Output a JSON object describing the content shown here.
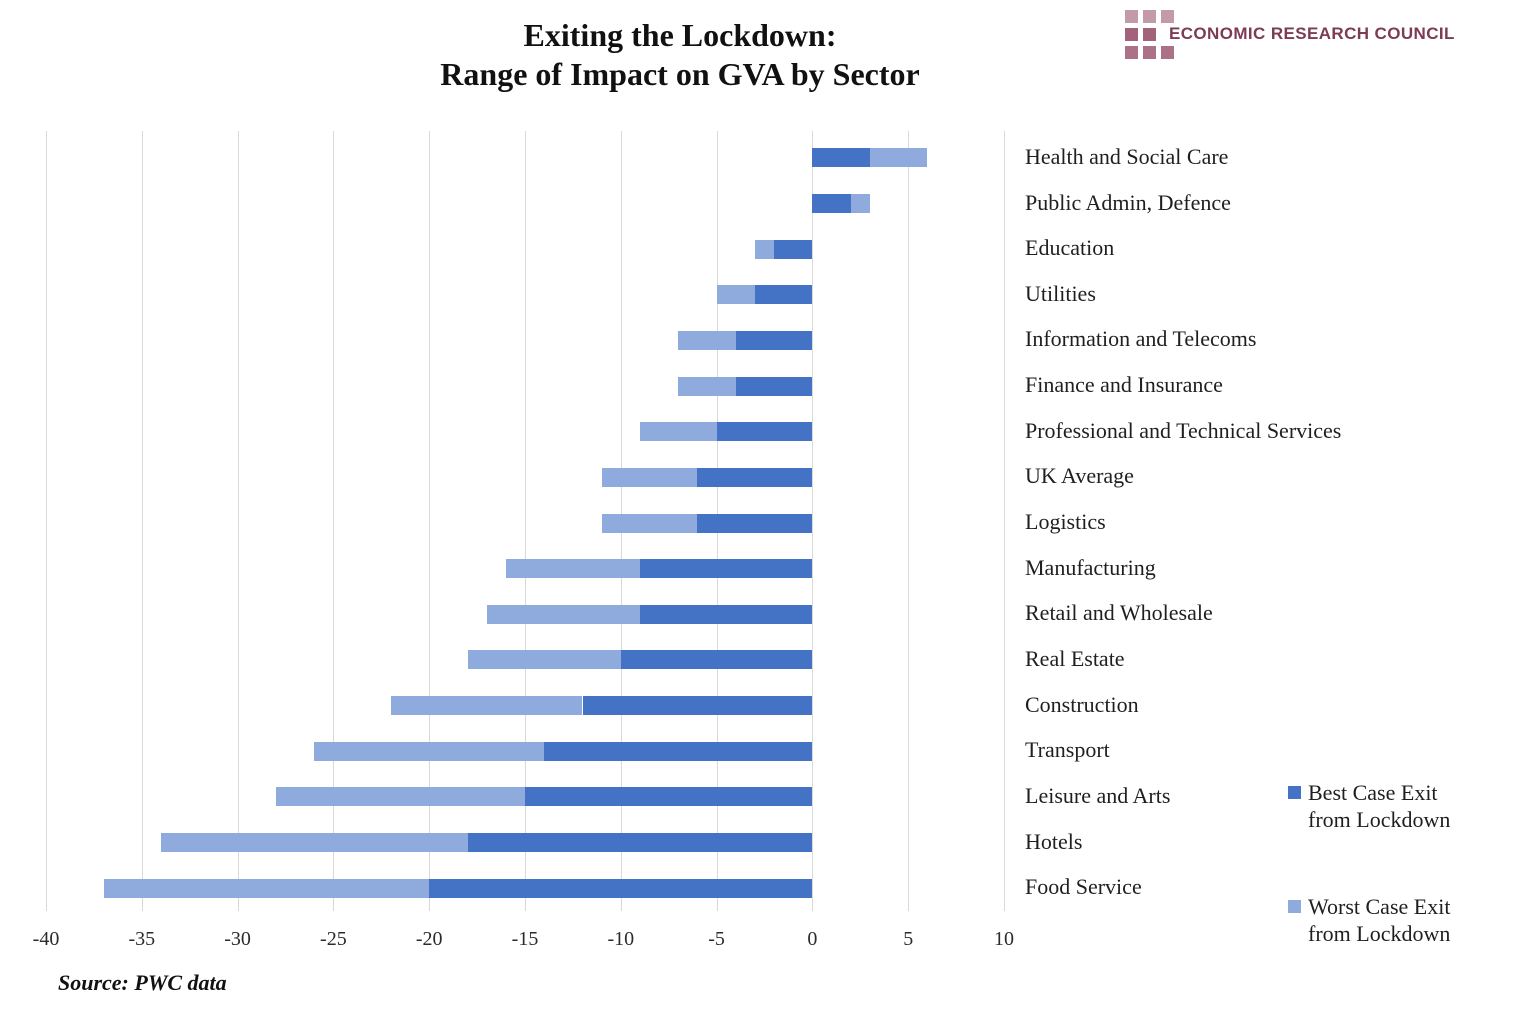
{
  "header": {
    "title_line1": "Exiting the Lockdown:",
    "title_line2": "Range of Impact on GVA by Sector"
  },
  "logo": {
    "text": "ECONOMIC RESEARCH COUNCIL",
    "text_color": "#7D3B56",
    "square_rows": [
      [
        "#C39AA8",
        "#C39AA8",
        "#C39AA8"
      ],
      [
        "#A2627B",
        "#A2627B",
        null
      ],
      [
        "#AB7186",
        "#AB7186",
        "#AB7186"
      ]
    ]
  },
  "source": {
    "text": "Source: PWC data"
  },
  "chart_data": {
    "type": "bar",
    "orientation": "horizontal",
    "stacked": true,
    "title": "Exiting the Lockdown: Range of Impact on GVA by Sector",
    "xlabel": "",
    "ylabel": "",
    "xlim": [
      -40,
      10
    ],
    "x_ticks": [
      -40,
      -35,
      -30,
      -25,
      -20,
      -15,
      -10,
      -5,
      0,
      5,
      10
    ],
    "grid": true,
    "grid_color": "#D9D9D9",
    "legend_position": "right",
    "categories": [
      "Health and Social Care",
      "Public Admin, Defence",
      "Education",
      "Utilities",
      "Information and Telecoms",
      "Finance and Insurance",
      "Professional and Technical Services",
      "UK Average",
      "Logistics",
      "Manufacturing",
      "Retail and Wholesale",
      "Real Estate",
      "Construction",
      "Transport",
      "Leisure and Arts",
      "Hotels",
      "Food Service"
    ],
    "series": [
      {
        "name": "Best Case Exit from Lockdown",
        "color": "#4472C4",
        "values": [
          3,
          2,
          -2,
          -3,
          -4,
          -4,
          -5,
          -6,
          -6,
          -9,
          -9,
          -10,
          -12,
          -14,
          -15,
          -18,
          -20
        ]
      },
      {
        "name": "Worst Case Exit from Lockdown",
        "color": "#8FAADC",
        "values": [
          6,
          3,
          -3,
          -5,
          -7,
          -7,
          -9,
          -11,
          -11,
          -16,
          -17,
          -18,
          -22,
          -26,
          -28,
          -34,
          -37
        ]
      }
    ],
    "encoding_note": "Best-case segment drawn from 0 to best value; worst-case segment extends from best value to worst value."
  }
}
